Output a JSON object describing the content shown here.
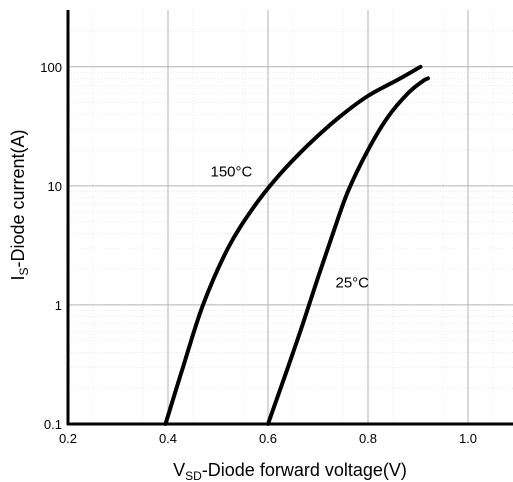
{
  "chart_data": {
    "type": "line",
    "x_scale": "linear",
    "y_scale": "log",
    "xlim": [
      0.2,
      1.09
    ],
    "ylim": [
      0.1,
      300
    ],
    "x_ticks": [
      "0.2",
      "0.4",
      "0.6",
      "0.8",
      "1.0"
    ],
    "y_ticks": [
      "0.1",
      "1",
      "10",
      "100"
    ],
    "xlabel": {
      "main": "V",
      "sub": "SD",
      "rest": "-Diode forward voltage(V)"
    },
    "ylabel": {
      "main": "I",
      "sub": "S",
      "rest": "-Diode current(A)"
    },
    "grid": true,
    "series": [
      {
        "name": "150°C",
        "x": [
          0.395,
          0.43,
          0.47,
          0.52,
          0.57,
          0.62,
          0.68,
          0.74,
          0.8,
          0.86,
          0.905
        ],
        "y": [
          0.1,
          0.3,
          1.0,
          3.0,
          6.5,
          12,
          22,
          37,
          57,
          78,
          100
        ]
      },
      {
        "name": "25°C",
        "x": [
          0.6,
          0.64,
          0.67,
          0.7,
          0.73,
          0.76,
          0.8,
          0.84,
          0.88,
          0.91,
          0.92
        ],
        "y": [
          0.1,
          0.3,
          0.7,
          1.7,
          4.0,
          9.0,
          20,
          38,
          60,
          76,
          80
        ]
      }
    ]
  }
}
